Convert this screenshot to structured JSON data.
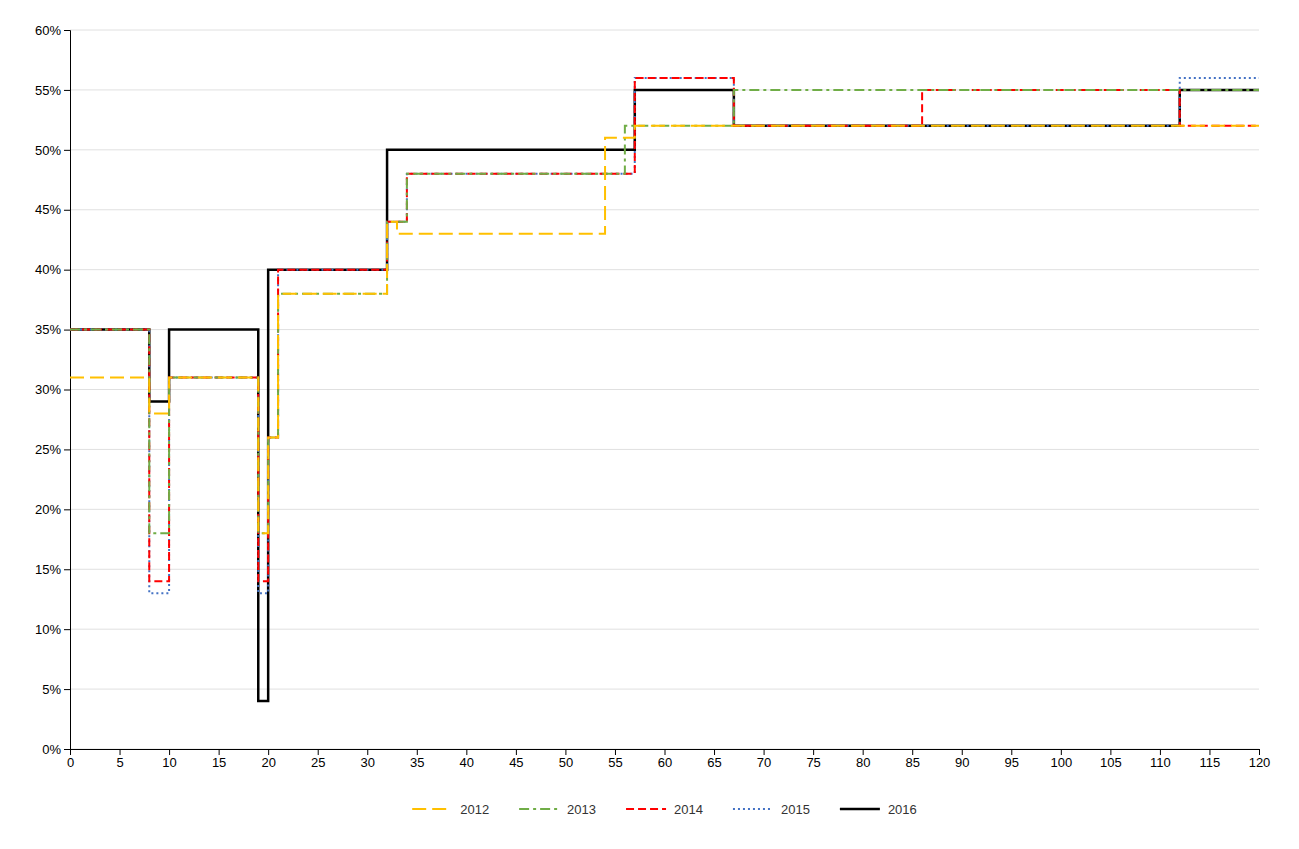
{
  "chart_data": {
    "type": "line",
    "xlim": [
      0,
      120
    ],
    "ylim": [
      0.0,
      0.6
    ],
    "xticks": [
      0,
      5,
      10,
      15,
      20,
      25,
      30,
      35,
      40,
      45,
      50,
      55,
      60,
      65,
      70,
      75,
      80,
      85,
      90,
      95,
      100,
      105,
      110,
      115,
      120
    ],
    "yticks": [
      {
        "value": 0.0,
        "label": "0%"
      },
      {
        "value": 0.05,
        "label": "5%"
      },
      {
        "value": 0.1,
        "label": "10%"
      },
      {
        "value": 0.15,
        "label": "15%"
      },
      {
        "value": 0.2,
        "label": "20%"
      },
      {
        "value": 0.25,
        "label": "25%"
      },
      {
        "value": 0.3,
        "label": "30%"
      },
      {
        "value": 0.35,
        "label": "35%"
      },
      {
        "value": 0.4,
        "label": "40%"
      },
      {
        "value": 0.45,
        "label": "45%"
      },
      {
        "value": 0.5,
        "label": "50%"
      },
      {
        "value": 0.55,
        "label": "55%"
      },
      {
        "value": 0.6,
        "label": "60%"
      }
    ],
    "grid": "y",
    "legend": "bottom",
    "series": [
      {
        "name": "2012",
        "color": "#FFC000",
        "line_style": "longdash",
        "x": [
          0,
          8,
          8,
          10,
          10,
          19,
          19,
          20,
          20,
          21,
          21,
          32,
          32,
          33,
          33,
          54,
          54,
          57,
          57,
          120
        ],
        "values": [
          0.31,
          0.31,
          0.28,
          0.28,
          0.31,
          0.31,
          0.18,
          0.18,
          0.26,
          0.26,
          0.38,
          0.38,
          0.44,
          0.44,
          0.43,
          0.43,
          0.51,
          0.51,
          0.52,
          0.52
        ]
      },
      {
        "name": "2013",
        "color": "#70AD47",
        "line_style": "dashdot",
        "x": [
          0,
          8,
          8,
          10,
          10,
          19,
          19,
          20,
          20,
          21,
          21,
          32,
          32,
          34,
          34,
          56,
          56,
          67,
          67,
          120
        ],
        "values": [
          0.35,
          0.35,
          0.18,
          0.18,
          0.31,
          0.31,
          0.18,
          0.18,
          0.26,
          0.26,
          0.38,
          0.38,
          0.44,
          0.44,
          0.48,
          0.48,
          0.52,
          0.52,
          0.55,
          0.55
        ]
      },
      {
        "name": "2014",
        "color": "#FF0000",
        "line_style": "dashed",
        "x": [
          0,
          8,
          8,
          10,
          10,
          19,
          19,
          20,
          20,
          21,
          21,
          32,
          32,
          34,
          34,
          57,
          57,
          67,
          67,
          86,
          86,
          112,
          112,
          120
        ],
        "values": [
          0.35,
          0.35,
          0.14,
          0.14,
          0.31,
          0.31,
          0.14,
          0.14,
          0.26,
          0.26,
          0.4,
          0.4,
          0.44,
          0.44,
          0.48,
          0.48,
          0.56,
          0.56,
          0.52,
          0.52,
          0.55,
          0.55,
          0.52,
          0.52
        ]
      },
      {
        "name": "2015",
        "color": "#4472C4",
        "line_style": "dotted",
        "x": [
          0,
          8,
          8,
          10,
          10,
          19,
          19,
          20,
          20,
          21,
          21,
          32,
          32,
          34,
          34,
          57,
          57,
          67,
          67,
          112,
          112,
          120
        ],
        "values": [
          0.35,
          0.35,
          0.13,
          0.13,
          0.31,
          0.31,
          0.13,
          0.13,
          0.26,
          0.26,
          0.4,
          0.4,
          0.44,
          0.44,
          0.48,
          0.48,
          0.56,
          0.56,
          0.52,
          0.52,
          0.56,
          0.56
        ]
      },
      {
        "name": "2016",
        "color": "#000000",
        "line_style": "solid",
        "x": [
          0,
          8,
          8,
          10,
          10,
          19,
          19,
          20,
          20,
          32,
          32,
          57,
          57,
          67,
          67,
          112,
          112,
          120
        ],
        "values": [
          0.35,
          0.35,
          0.29,
          0.29,
          0.35,
          0.35,
          0.04,
          0.04,
          0.4,
          0.4,
          0.5,
          0.5,
          0.55,
          0.55,
          0.52,
          0.52,
          0.55,
          0.55
        ]
      }
    ]
  }
}
